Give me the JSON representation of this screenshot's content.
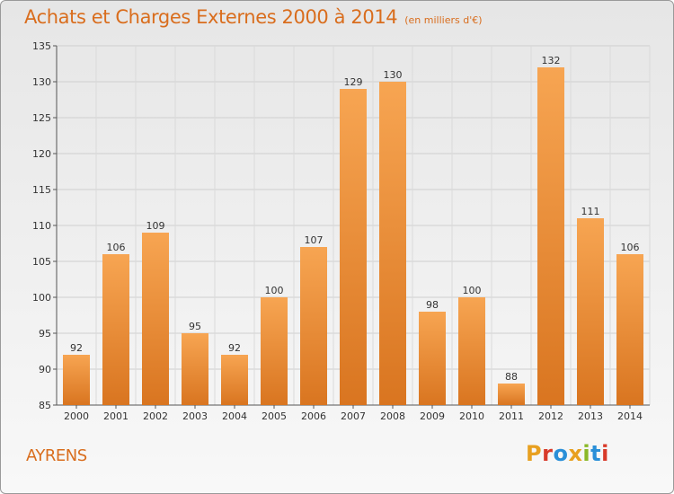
{
  "header": {
    "title": "Achats et Charges Externes 2000 à 2014",
    "unit": "(en milliers d'€)"
  },
  "footer": {
    "commune": "AYRENS",
    "logo_text": "Proxiti",
    "logo_colors": [
      "#e8a020",
      "#d83a2a",
      "#2a8fd8",
      "#e8a020",
      "#8ab828",
      "#2a8fd8",
      "#d83a2a"
    ]
  },
  "colors": {
    "bar_light": "#f7a552",
    "bar_dark": "#d97520",
    "title": "#d96d1d"
  },
  "chart_data": {
    "type": "bar",
    "title": "Achats et Charges Externes 2000 à 2014",
    "subtitle": "(en milliers d'€)",
    "xlabel": "",
    "ylabel": "",
    "categories": [
      "2000",
      "2001",
      "2002",
      "2003",
      "2004",
      "2005",
      "2006",
      "2007",
      "2008",
      "2009",
      "2010",
      "2011",
      "2012",
      "2013",
      "2014"
    ],
    "values": [
      92,
      106,
      109,
      95,
      92,
      100,
      107,
      129,
      130,
      98,
      100,
      88,
      132,
      111,
      106
    ],
    "ylim": [
      85,
      135
    ],
    "yticks": [
      85,
      90,
      95,
      100,
      105,
      110,
      115,
      120,
      125,
      130,
      135
    ],
    "grid": true
  }
}
